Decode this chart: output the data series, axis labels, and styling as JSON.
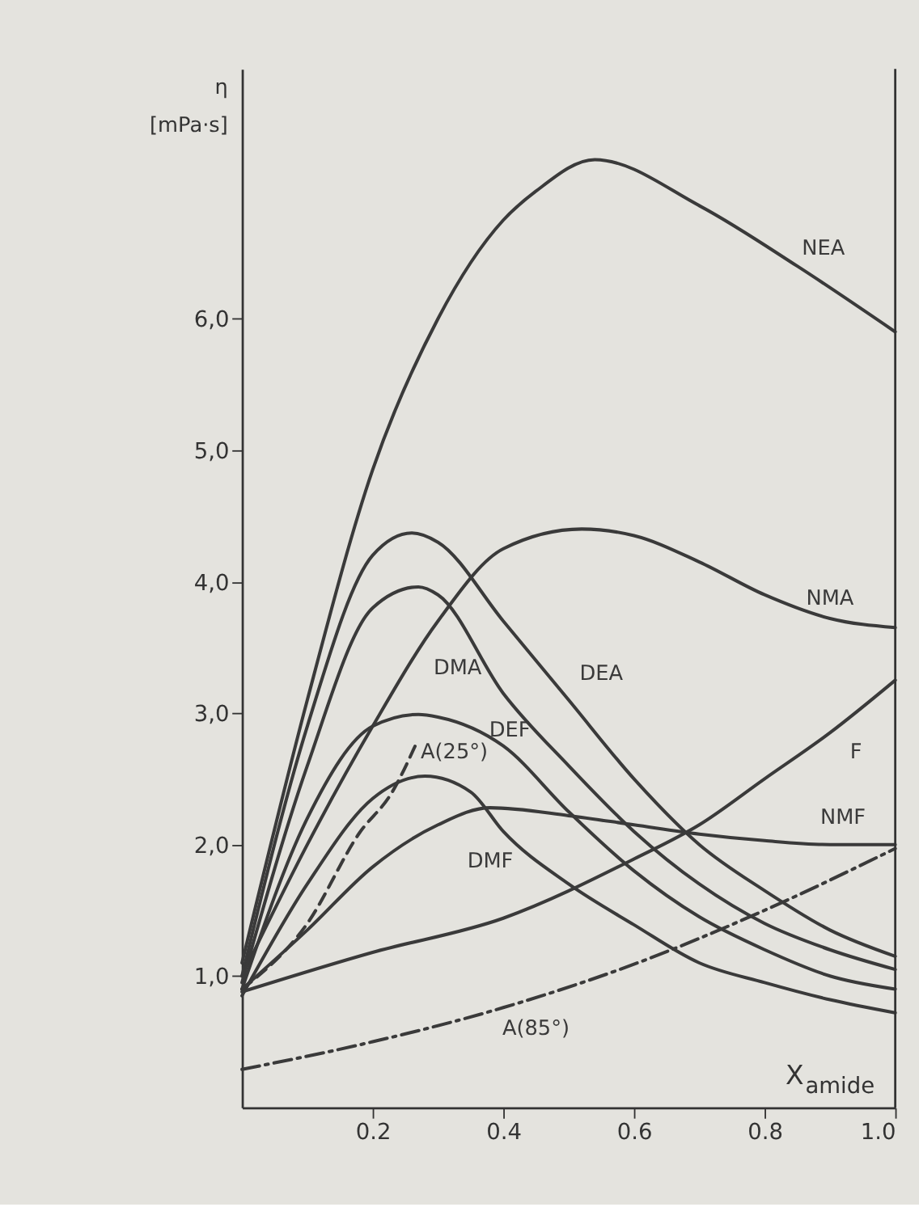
{
  "chart_data": {
    "type": "line",
    "xlabel": "X$_{amide}$",
    "ylabel": "η [mPa·s]",
    "xlim": [
      0,
      1.0
    ],
    "ylim": [
      0,
      7.9
    ],
    "xticks": [
      0.2,
      0.4,
      0.6,
      0.8,
      {
        "value": 1.0,
        "label": "1.0"
      }
    ],
    "yticks": [
      {
        "value": 1,
        "label": "1,0"
      },
      {
        "value": 2,
        "label": "2,0"
      },
      {
        "value": 3,
        "label": "3,0"
      },
      {
        "value": 4,
        "label": "4,0"
      },
      {
        "value": 5,
        "label": "5,0"
      },
      {
        "value": 6,
        "label": "6,0"
      }
    ],
    "grid": false,
    "marker": "none",
    "series": [
      {
        "name": "NEA",
        "color": "#3a3a3a",
        "line_style": "solid",
        "x": [
          0,
          0.1,
          0.2,
          0.3,
          0.4,
          0.45,
          0.54,
          0.7,
          0.85,
          1.0
        ],
        "values": [
          1.1,
          3.1,
          4.85,
          6.0,
          6.75,
          6.97,
          7.21,
          6.86,
          6.4,
          5.9
        ]
      },
      {
        "name": "NMA",
        "color": "#3a3a3a",
        "line_style": "solid",
        "x": [
          0,
          0.1,
          0.2,
          0.3,
          0.4,
          0.52,
          0.6,
          0.7,
          0.8,
          0.9,
          1.0
        ],
        "values": [
          1.0,
          2.0,
          2.9,
          3.7,
          4.25,
          4.4,
          4.35,
          4.15,
          3.9,
          3.72,
          3.65
        ]
      },
      {
        "name": "DEA",
        "color": "#3a3a3a",
        "line_style": "solid",
        "x": [
          0,
          0.1,
          0.2,
          0.26,
          0.3,
          0.4,
          0.5,
          0.6,
          0.7,
          0.8,
          0.9,
          1.0
        ],
        "values": [
          1.0,
          2.9,
          4.2,
          4.37,
          4.3,
          3.7,
          3.1,
          2.5,
          2.0,
          1.65,
          1.35,
          1.15
        ]
      },
      {
        "name": "DMA",
        "color": "#3a3a3a",
        "line_style": "solid",
        "x": [
          0,
          0.1,
          0.2,
          0.27,
          0.3,
          0.4,
          0.5,
          0.6,
          0.7,
          0.8,
          0.9,
          1.0
        ],
        "values": [
          0.95,
          2.6,
          3.8,
          3.96,
          3.9,
          3.15,
          2.6,
          2.1,
          1.7,
          1.4,
          1.2,
          1.05
        ]
      },
      {
        "name": "DEF",
        "color": "#3a3a3a",
        "line_style": "solid",
        "x": [
          0,
          0.1,
          0.2,
          0.27,
          0.3,
          0.4,
          0.5,
          0.6,
          0.7,
          0.8,
          0.9,
          1.0
        ],
        "values": [
          0.9,
          2.2,
          2.9,
          2.99,
          2.97,
          2.75,
          2.25,
          1.8,
          1.45,
          1.2,
          1.0,
          0.9
        ]
      },
      {
        "name": "A(25°)",
        "color": "#3a3a3a",
        "line_style": "dashed",
        "x": [
          0,
          0.1,
          0.18,
          0.23,
          0.266
        ],
        "values": [
          0.9,
          1.4,
          2.09,
          2.4,
          2.76
        ]
      },
      {
        "name": "DMF",
        "color": "#3a3a3a",
        "line_style": "solid",
        "x": [
          0,
          0.1,
          0.2,
          0.28,
          0.35,
          0.4,
          0.5,
          0.6,
          0.7,
          0.8,
          0.9,
          1.0
        ],
        "values": [
          0.85,
          1.7,
          2.35,
          2.52,
          2.4,
          2.1,
          1.7,
          1.39,
          1.1,
          0.95,
          0.82,
          0.72
        ]
      },
      {
        "name": "NMF",
        "color": "#3a3a3a",
        "line_style": "solid",
        "x": [
          0,
          0.1,
          0.2,
          0.3,
          0.38,
          0.5,
          0.6,
          0.7,
          0.8,
          0.9,
          1.0
        ],
        "values": [
          0.9,
          1.35,
          1.83,
          2.15,
          2.28,
          2.22,
          2.15,
          2.08,
          2.03,
          2.0,
          2.0
        ]
      },
      {
        "name": "F",
        "color": "#3a3a3a",
        "line_style": "solid",
        "x": [
          0,
          0.2,
          0.4,
          0.6,
          0.7,
          0.8,
          0.9,
          1.0
        ],
        "values": [
          0.88,
          1.18,
          1.44,
          1.89,
          2.15,
          2.5,
          2.85,
          3.25
        ]
      },
      {
        "name": "A(85°)",
        "color": "#3a3a3a",
        "line_style": "dashdot",
        "x": [
          0,
          0.2,
          0.4,
          0.6,
          0.8,
          1.0
        ],
        "values": [
          0.29,
          0.5,
          0.76,
          1.09,
          1.5,
          1.97
        ]
      }
    ]
  }
}
